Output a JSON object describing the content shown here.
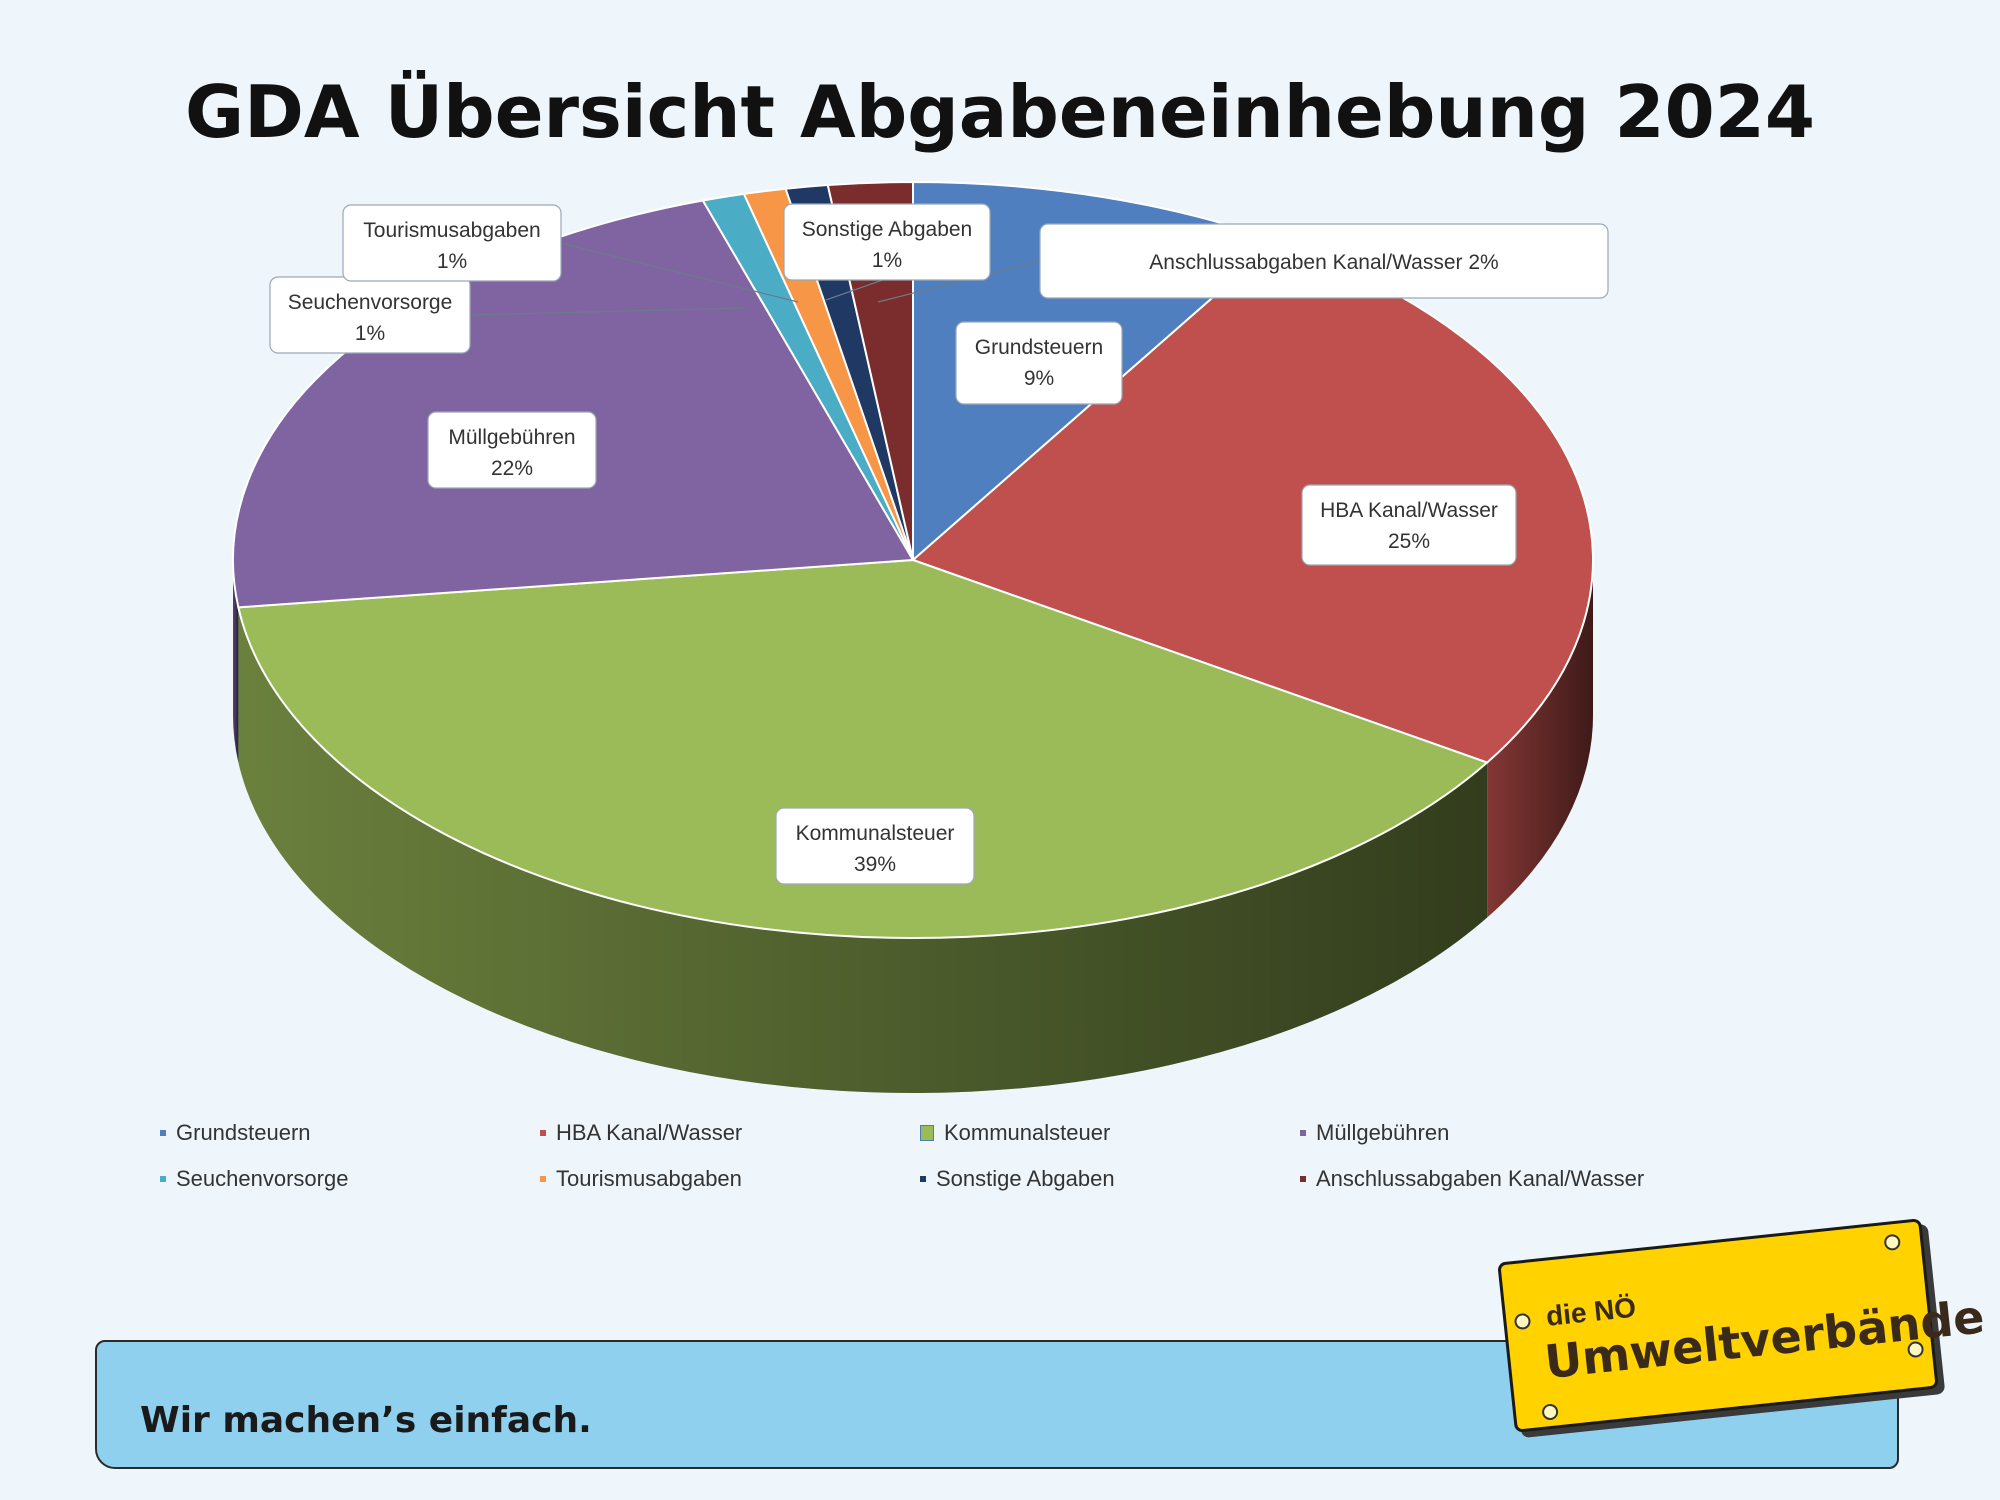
{
  "title": "GDA Übersicht Abgabeneinhebung 2024",
  "chart_data": {
    "type": "pie",
    "style": "3d",
    "title": "GDA Übersicht Abgabeneinhebung 2024",
    "slices": [
      {
        "label": "Grundsteuern",
        "value": 9,
        "display": "9%",
        "color": "#4f7fbf"
      },
      {
        "label": "HBA Kanal/Wasser",
        "value": 25,
        "display": "25%",
        "color": "#c0504d"
      },
      {
        "label": "Kommunalsteuer",
        "value": 39,
        "display": "39%",
        "color": "#9bbb59"
      },
      {
        "label": "Müllgebühren",
        "value": 22,
        "display": "22%",
        "color": "#8064a2"
      },
      {
        "label": "Seuchenvorsorge",
        "value": 1,
        "display": "1%",
        "color": "#4bacc6"
      },
      {
        "label": "Tourismusabgaben",
        "value": 1,
        "display": "1%",
        "color": "#f79646"
      },
      {
        "label": "Sonstige Abgaben",
        "value": 1,
        "display": "1%",
        "color": "#1f3864"
      },
      {
        "label": "Anschlussabgaben Kanal/Wasser",
        "value": 2,
        "display": "2%",
        "color": "#7b2c2c"
      }
    ],
    "legend_position": "bottom"
  },
  "footer": {
    "slogan": "Wir machen’s einfach.",
    "logo_small": "die NÖ",
    "logo_big": "Umweltverbände"
  }
}
